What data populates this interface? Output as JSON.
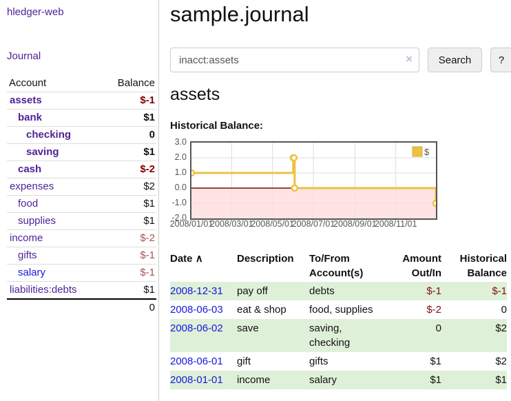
{
  "app": {
    "brand": "hledger-web"
  },
  "colors": {
    "link_purple": "#4f2396",
    "link_blue": "#1616e0",
    "negative_strong": "#800000",
    "negative_soft": "#a85454",
    "row_stripe_green": "#dff0d8",
    "chart_line_yellow": "#edc240",
    "chart_negative_fill": "#ffdddd",
    "chart_zero_line": "#8b0000",
    "chart_border": "#545454"
  },
  "sidebar": {
    "journal_link": "Journal",
    "accounts": {
      "header_account": "Account",
      "header_balance": "Balance",
      "rows": [
        {
          "name": "assets",
          "balance": "$-1"
        },
        {
          "name": "bank",
          "balance": "$1"
        },
        {
          "name": "checking",
          "balance": "0"
        },
        {
          "name": "saving",
          "balance": "$1"
        },
        {
          "name": "cash",
          "balance": "$-2"
        },
        {
          "name": "expenses",
          "balance": "$2"
        },
        {
          "name": "food",
          "balance": "$1"
        },
        {
          "name": "supplies",
          "balance": "$1"
        },
        {
          "name": "income",
          "balance": "$-2"
        },
        {
          "name": "gifts",
          "balance": "$-1"
        },
        {
          "name": "salary",
          "balance": "$-1"
        },
        {
          "name": "liabilities:debts",
          "balance": "$1"
        }
      ],
      "total": "0"
    }
  },
  "main": {
    "title": "sample.journal",
    "search": {
      "value": "inacct:assets",
      "clear_icon": "×",
      "search_button": "Search",
      "help_button": "?"
    },
    "account_heading": "assets",
    "chart_title": "Historical Balance:"
  },
  "chart_data": {
    "type": "line",
    "step": true,
    "title": "Historical Balance:",
    "series": [
      {
        "name": "$",
        "color": "#edc240",
        "points": [
          [
            "2008-01-01",
            1.0
          ],
          [
            "2008-06-01",
            2.0
          ],
          [
            "2008-06-02",
            2.0
          ],
          [
            "2008-06-03",
            0.0
          ],
          [
            "2008-12-31",
            -1.0
          ]
        ]
      }
    ],
    "xlim": [
      "2008-01-01",
      "2008-12-31"
    ],
    "ylim": [
      -2.0,
      3.0
    ],
    "yticks": [
      3.0,
      2.0,
      1.0,
      0.0,
      -1.0,
      -2.0
    ],
    "xticks": [
      "2008/01/01",
      "2008/03/01",
      "2008/05/01",
      "2008/07/01",
      "2008/09/01",
      "2008/11/01"
    ],
    "grid": true,
    "legend": {
      "label": "$",
      "position": "top-right"
    },
    "negative_fill": "#ffdddd",
    "zero_line_color": "#8b0000"
  },
  "register": {
    "headers": {
      "date": "Date",
      "sort_icon": "∧",
      "description": "Description",
      "tofrom": "To/From Account(s)",
      "amount": "Amount Out/In",
      "balance": "Historical Balance"
    },
    "rows": [
      {
        "date": "2008-12-31",
        "description": "pay off",
        "accounts": "debts",
        "amount": "$-1",
        "balance": "$-1"
      },
      {
        "date": "2008-06-03",
        "description": "eat & shop",
        "accounts": "food, supplies",
        "amount": "$-2",
        "balance": "0"
      },
      {
        "date": "2008-06-02",
        "description": "save",
        "accounts": "saving, checking",
        "amount": "0",
        "balance": "$2"
      },
      {
        "date": "2008-06-01",
        "description": "gift",
        "accounts": "gifts",
        "amount": "$1",
        "balance": "$2"
      },
      {
        "date": "2008-01-01",
        "description": "income",
        "accounts": "salary",
        "amount": "$1",
        "balance": "$1"
      }
    ]
  }
}
